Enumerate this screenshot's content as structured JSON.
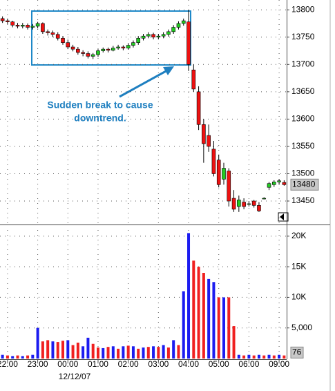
{
  "chart_data": {
    "type": "candlestick",
    "categories": [
      null,
      "22:00",
      null,
      null,
      null,
      null,
      null,
      "23:00",
      null,
      null,
      null,
      null,
      null,
      "00:00",
      null,
      null,
      null,
      null,
      null,
      "01:00",
      null,
      null,
      null,
      null,
      null,
      "02:00",
      null,
      null,
      null,
      null,
      null,
      "03:00",
      null,
      null,
      null,
      null,
      null,
      "04:00",
      null,
      null,
      null,
      null,
      null,
      "05:00",
      null,
      null,
      null,
      null,
      null,
      "06:00",
      null,
      null,
      null,
      null,
      null,
      "09:00",
      null
    ],
    "date_label": "12/12/07",
    "open": [
      13784,
      13780,
      13778,
      13772,
      13770,
      13772,
      13768,
      13770,
      13775,
      13760,
      13758,
      13755,
      13748,
      13740,
      13732,
      13728,
      13722,
      13720,
      13715,
      13718,
      13725,
      13728,
      13726,
      13730,
      13732,
      13730,
      13735,
      13740,
      13748,
      13752,
      13755,
      13750,
      13752,
      13755,
      13760,
      13768,
      13775,
      13778,
      13690,
      13650,
      13590,
      13570,
      13545,
      13525,
      13490,
      13505,
      13455,
      13440,
      13448,
      13445,
      13450,
      13442,
      13455,
      13475,
      13480,
      13485,
      13484
    ],
    "high": [
      13788,
      13784,
      13780,
      13776,
      13776,
      13775,
      13774,
      13778,
      13777,
      13764,
      13762,
      13759,
      13752,
      13745,
      13736,
      13732,
      13726,
      13724,
      13721,
      13728,
      13731,
      13731,
      13734,
      13736,
      13735,
      13739,
      13744,
      13752,
      13756,
      13759,
      13758,
      13756,
      13759,
      13764,
      13772,
      13779,
      13784,
      13800,
      13700,
      13660,
      13600,
      13590,
      13560,
      13535,
      13520,
      13510,
      13470,
      13460,
      13455,
      13450,
      13452,
      13448,
      13457,
      13485,
      13488,
      13490,
      13488
    ],
    "low": [
      13776,
      13774,
      13768,
      13766,
      13766,
      13764,
      13764,
      13766,
      13756,
      13753,
      13750,
      13744,
      13736,
      13728,
      13724,
      13718,
      13715,
      13711,
      13710,
      13714,
      13722,
      13722,
      13724,
      13727,
      13726,
      13727,
      13731,
      13736,
      13744,
      13748,
      13746,
      13746,
      13748,
      13751,
      13756,
      13764,
      13771,
      13688,
      13650,
      13580,
      13520,
      13540,
      13495,
      13475,
      13480,
      13440,
      13430,
      13430,
      13435,
      13440,
      13438,
      13430,
      13453,
      13470,
      13476,
      13480,
      13478
    ],
    "close": [
      13780,
      13778,
      13772,
      13770,
      13772,
      13768,
      13770,
      13775,
      13760,
      13758,
      13755,
      13748,
      13740,
      13732,
      13728,
      13722,
      13720,
      13715,
      13718,
      13725,
      13728,
      13726,
      13730,
      13732,
      13730,
      13735,
      13740,
      13748,
      13752,
      13755,
      13750,
      13752,
      13755,
      13760,
      13768,
      13775,
      13780,
      13700,
      13655,
      13590,
      13555,
      13550,
      13500,
      13480,
      13510,
      13450,
      13435,
      13452,
      13440,
      13445,
      13442,
      13432,
      13455,
      13482,
      13485,
      13487,
      13480
    ],
    "up_color": "#22cc22",
    "down_color": "#ee1111",
    "ylim": [
      13407,
      13818
    ],
    "yticks": [
      13450,
      13500,
      13550,
      13600,
      13650,
      13700,
      13750,
      13800
    ],
    "last_price": 13480,
    "volume": [
      600,
      500,
      400,
      500,
      400,
      500,
      600,
      5000,
      2800,
      3000,
      2800,
      2700,
      2900,
      3000,
      2200,
      2600,
      2000,
      3400,
      2400,
      1800,
      1700,
      1900,
      2000,
      1600,
      2000,
      2100,
      2000,
      1600,
      1800,
      1900,
      2000,
      1900,
      2200,
      1800,
      3000,
      2200,
      11000,
      20500,
      16000,
      15000,
      14000,
      13000,
      12500,
      10000,
      10000,
      10000,
      5300,
      600,
      500,
      600,
      500,
      600,
      500,
      600,
      500,
      600,
      500
    ],
    "volume_colors": [
      "#1c1cf0",
      "#f02020",
      "#1c1cf0",
      "#f02020",
      "#1c1cf0",
      "#f02020",
      "#1c1cf0",
      "#1c1cf0",
      "#f02020",
      "#f02020",
      "#1c1cf0",
      "#f02020",
      "#f02020",
      "#1c1cf0",
      "#f02020",
      "#f02020",
      "#1c1cf0",
      "#1c1cf0",
      "#f02020",
      "#f02020",
      "#1c1cf0",
      "#f02020",
      "#1c1cf0",
      "#f02020",
      "#1c1cf0",
      "#f02020",
      "#1c1cf0",
      "#f02020",
      "#1c1cf0",
      "#f02020",
      "#1c1cf0",
      "#f02020",
      "#1c1cf0",
      "#f02020",
      "#1c1cf0",
      "#f02020",
      "#1c1cf0",
      "#1c1cf0",
      "#f02020",
      "#f02020",
      "#f02020",
      "#1c1cf0",
      "#1c1cf0",
      "#f02020",
      "#1c1cf0",
      "#f02020",
      "#f02020",
      "#1c1cf0",
      "#f02020",
      "#1c1cf0",
      "#f02020",
      "#1c1cf0",
      "#f02020",
      "#1c1cf0",
      "#f02020",
      "#1c1cf0",
      "#f02020"
    ],
    "volume_ylim": [
      0,
      21000
    ],
    "volume_yticks": [
      {
        "value": 5000,
        "label": "5,000"
      },
      {
        "value": 10000,
        "label": "10K"
      },
      {
        "value": 15000,
        "label": "15K"
      },
      {
        "value": 20000,
        "label": "20K"
      }
    ],
    "last_volume": 76,
    "annotation": [
      "Sudden break to cause",
      "downtrend."
    ],
    "grid": true
  }
}
